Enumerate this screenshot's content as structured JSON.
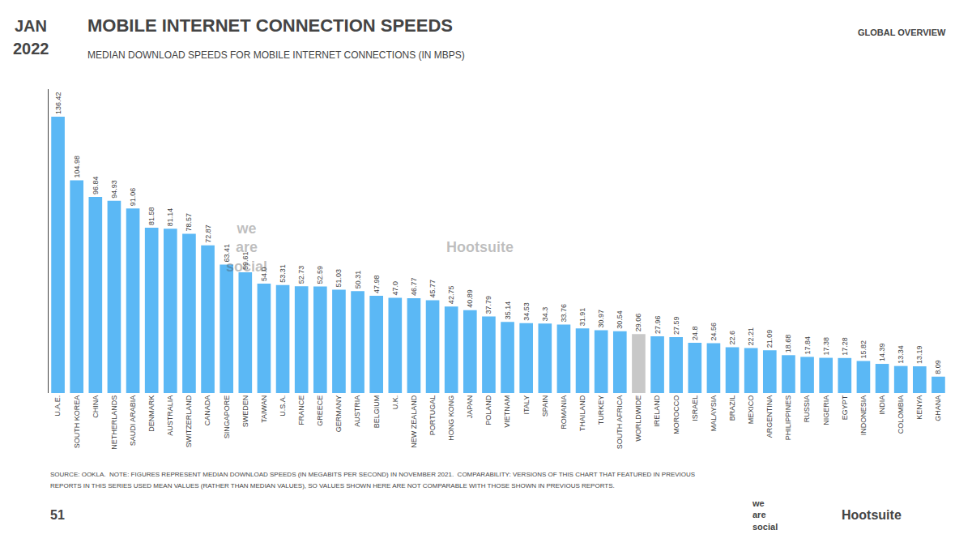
{
  "chart_data": {
    "type": "bar",
    "title": "MOBILE INTERNET CONNECTION SPEEDS",
    "subtitle": "MEDIAN DOWNLOAD SPEEDS FOR MOBILE INTERNET CONNECTIONS (IN MBPS)",
    "categories": [
      "U.A.E.",
      "SOUTH KOREA",
      "CHINA",
      "NETHERLANDS",
      "SAUDI ARABIA",
      "DENMARK",
      "AUSTRALIA",
      "SWITZERLAND",
      "CANADA",
      "SINGAPORE",
      "SWEDEN",
      "TAIWAN",
      "U.S.A.",
      "FRANCE",
      "GREECE",
      "GERMANY",
      "AUSTRIA",
      "BELGIUM",
      "U.K.",
      "NEW ZEALAND",
      "PORTUGAL",
      "HONG KONG",
      "JAPAN",
      "POLAND",
      "VIETNAM",
      "ITALY",
      "SPAIN",
      "ROMANIA",
      "THAILAND",
      "TURKEY",
      "SOUTH AFRICA",
      "WORLDWIDE",
      "IRELAND",
      "MOROCCO",
      "ISRAEL",
      "MALAYSIA",
      "BRAZIL",
      "MEXICO",
      "ARGENTINA",
      "PHILIPPINES",
      "RUSSIA",
      "NIGERIA",
      "EGYPT",
      "INDONESIA",
      "INDIA",
      "COLOMBIA",
      "KENYA",
      "GHANA"
    ],
    "values": [
      136.42,
      104.98,
      96.84,
      94.93,
      91.06,
      81.58,
      81.14,
      78.57,
      72.87,
      63.41,
      59.61,
      54.0,
      53.31,
      52.73,
      52.59,
      51.03,
      50.31,
      47.98,
      47.0,
      46.77,
      45.77,
      42.75,
      40.89,
      37.79,
      35.14,
      34.53,
      34.3,
      33.76,
      31.91,
      30.97,
      30.54,
      29.06,
      27.96,
      27.59,
      24.8,
      24.56,
      22.6,
      22.21,
      21.09,
      18.68,
      17.84,
      17.38,
      17.28,
      15.82,
      14.39,
      13.34,
      13.19,
      8.09
    ],
    "value_labels": [
      "136.42",
      "104.98",
      "96.84",
      "94.93",
      "91.06",
      "81.58",
      "81.14",
      "78.57",
      "72.87",
      "63.41",
      "59.61",
      "54.0",
      "53.31",
      "52.73",
      "52.59",
      "51.03",
      "50.31",
      "47.98",
      "47.0",
      "46.77",
      "45.77",
      "42.75",
      "40.89",
      "37.79",
      "35.14",
      "34.53",
      "34.3",
      "33.76",
      "31.91",
      "30.97",
      "30.54",
      "29.06",
      "27.96",
      "27.59",
      "24.8",
      "24.56",
      "22.6",
      "22.21",
      "21.09",
      "18.68",
      "17.84",
      "17.38",
      "17.28",
      "15.82",
      "14.39",
      "13.34",
      "13.19",
      "8.09"
    ],
    "colors": [
      "#5bb8f5",
      "#5bb8f5",
      "#5bb8f5",
      "#5bb8f5",
      "#5bb8f5",
      "#5bb8f5",
      "#5bb8f5",
      "#5bb8f5",
      "#5bb8f5",
      "#5bb8f5",
      "#5bb8f5",
      "#5bb8f5",
      "#5bb8f5",
      "#5bb8f5",
      "#5bb8f5",
      "#5bb8f5",
      "#5bb8f5",
      "#5bb8f5",
      "#5bb8f5",
      "#5bb8f5",
      "#5bb8f5",
      "#5bb8f5",
      "#5bb8f5",
      "#5bb8f5",
      "#5bb8f5",
      "#5bb8f5",
      "#5bb8f5",
      "#5bb8f5",
      "#5bb8f5",
      "#5bb8f5",
      "#5bb8f5",
      "#c8c8c8",
      "#5bb8f5",
      "#5bb8f5",
      "#5bb8f5",
      "#5bb8f5",
      "#5bb8f5",
      "#5bb8f5",
      "#5bb8f5",
      "#5bb8f5",
      "#5bb8f5",
      "#5bb8f5",
      "#5bb8f5",
      "#5bb8f5",
      "#5bb8f5",
      "#5bb8f5",
      "#5bb8f5",
      "#5bb8f5"
    ],
    "ylim": [
      0,
      150
    ],
    "grid": false,
    "data_labels": true,
    "tick_labels": "x",
    "annotations": [
      "JAN",
      "2022",
      "GLOBAL OVERVIEW",
      "we\nare\nsocial",
      "Hootsuite",
      "SOURCE: OOKLA.  NOTE: FIGURES REPRESENT MEDIAN DOWNLOAD SPEEDS (IN MEGABITS PER SECOND) IN NOVEMBER 2021.  COMPARABILITY: VERSIONS OF THIS CHART THAT FEATURED IN PREVIOUS",
      "REPORTS IN THIS SERIES USED MEAN VALUES (RATHER THAN MEDIAN VALUES), SO VALUES SHOWN HERE ARE NOT COMPARABLE WITH THOSE SHOWN IN PREVIOUS REPORTS.",
      "51",
      "we\nare\nsocial",
      "Hootsuite"
    ]
  }
}
